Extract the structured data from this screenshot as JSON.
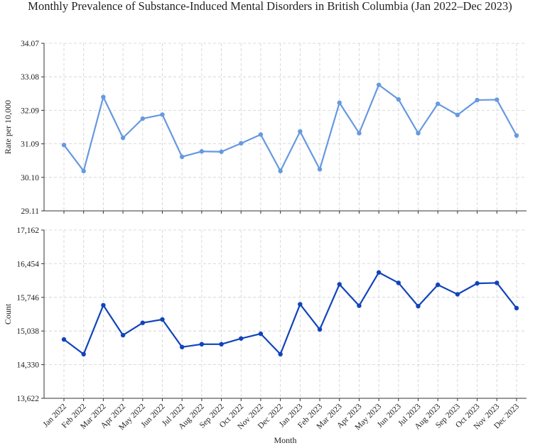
{
  "chart_data": [
    {
      "type": "line",
      "title": "Monthly Prevalence of Substance-Induced Mental Disorders in British Columbia (Jan 2022–Dec 2023)",
      "xlabel": "",
      "ylabel": "Rate per 10,000",
      "ylim": [
        29.11,
        34.07
      ],
      "yticks": [
        "29.11",
        "30.10",
        "31.09",
        "32.09",
        "33.08",
        "34.07"
      ],
      "grid": true,
      "color": "#6699e0",
      "categories": [
        "Jan 2022",
        "Feb 2022",
        "Mar 2022",
        "Apr 2022",
        "May 2022",
        "Jun 2022",
        "Jul 2022",
        "Aug 2022",
        "Sep 2022",
        "Oct 2022",
        "Nov 2022",
        "Dec 2022",
        "Jan 2023",
        "Feb 2023",
        "Mar 2023",
        "Apr 2023",
        "May 2023",
        "Jun 2023",
        "Jul 2023",
        "Aug 2023",
        "Sep 2023",
        "Oct 2023",
        "Nov 2023",
        "Dec 2023"
      ],
      "series": [
        {
          "name": "",
          "values": [
            31.06,
            30.29,
            32.48,
            31.27,
            31.84,
            31.96,
            30.71,
            30.87,
            30.86,
            31.11,
            31.37,
            30.29,
            31.46,
            30.34,
            32.31,
            31.41,
            32.84,
            32.41,
            31.41,
            32.28,
            31.95,
            32.39,
            32.4,
            31.34
          ]
        }
      ]
    },
    {
      "type": "line",
      "title": "",
      "xlabel": "Month",
      "ylabel": "Count",
      "ylim": [
        13622,
        17162
      ],
      "yticks": [
        "13,622",
        "14,330",
        "15,038",
        "15,746",
        "16,454",
        "17,162"
      ],
      "grid": true,
      "color": "#1144bb",
      "categories": [
        "Jan 2022",
        "Feb 2022",
        "Mar 2022",
        "Apr 2022",
        "May 2022",
        "Jun 2022",
        "Jul 2022",
        "Aug 2022",
        "Sep 2022",
        "Oct 2022",
        "Nov 2022",
        "Dec 2022",
        "Jan 2023",
        "Feb 2023",
        "Mar 2023",
        "Apr 2023",
        "May 2023",
        "Jun 2023",
        "Jul 2023",
        "Aug 2023",
        "Sep 2023",
        "Oct 2023",
        "Nov 2023",
        "Dec 2023"
      ],
      "series": [
        {
          "name": "",
          "values": [
            14860,
            14550,
            15580,
            14950,
            15210,
            15280,
            14700,
            14760,
            14760,
            14880,
            14980,
            14550,
            15600,
            15070,
            16020,
            15570,
            16270,
            16050,
            15560,
            16010,
            15810,
            16040,
            16050,
            15520
          ]
        }
      ]
    }
  ]
}
